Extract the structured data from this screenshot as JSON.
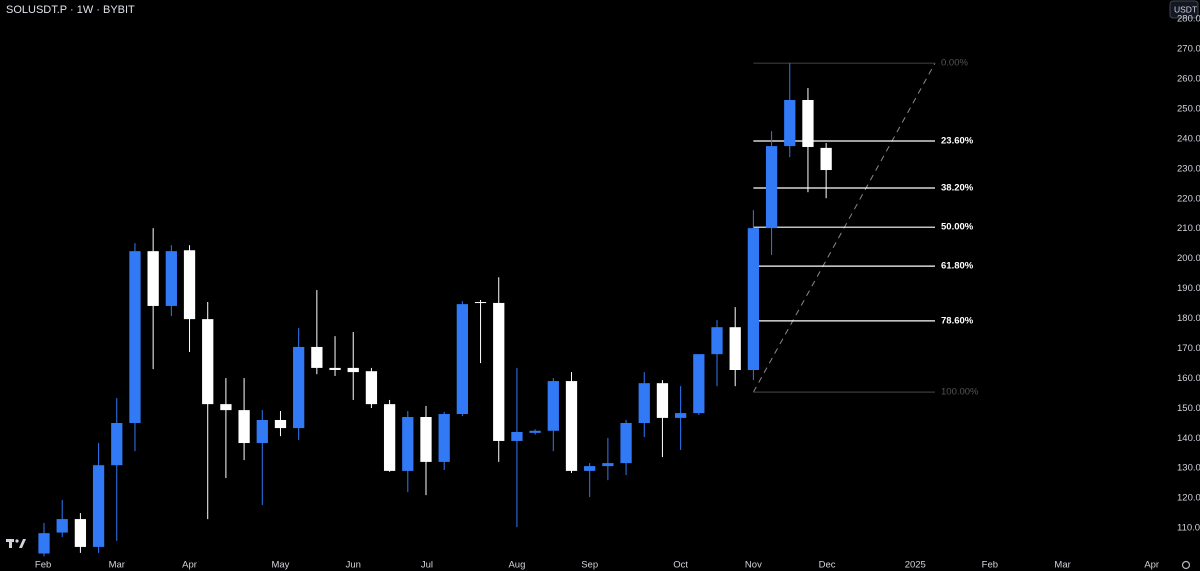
{
  "header": {
    "symbol": "SOLUSDT.P · 1W · BYBIT",
    "currency": "USDT"
  },
  "chart_data": {
    "type": "candlestick",
    "x": [
      0,
      1,
      2,
      3,
      4,
      5,
      6,
      7,
      8,
      9,
      10,
      11,
      12,
      13,
      14,
      15,
      16,
      17,
      18,
      19,
      20,
      21,
      22,
      23,
      24,
      25,
      26,
      27,
      28,
      29,
      30,
      31,
      32,
      33,
      34,
      35,
      36,
      37,
      38,
      39,
      40,
      41,
      42,
      43
    ],
    "open": [
      101.5,
      108.5,
      113,
      103.7,
      131,
      145.1,
      202.5,
      184.2,
      202.8,
      179.8,
      151.4,
      149.4,
      138.4,
      146.1,
      143.4,
      170.5,
      163.5,
      163.5,
      162.4,
      151.4,
      129.1,
      147.1,
      132.1,
      148.1,
      185.5,
      185.2,
      139.1,
      141.8,
      142.5,
      159.1,
      129.1,
      130.7,
      131.7,
      145.1,
      158.4,
      146.8,
      148.4,
      168.1,
      177.1,
      162.8,
      210.2,
      237.6,
      253,
      237
    ],
    "high": [
      111.7,
      119.4,
      115,
      138.4,
      153.4,
      205.2,
      210.2,
      204.5,
      204.5,
      185.5,
      160.1,
      160.1,
      149.4,
      149.1,
      176.8,
      189.5,
      174.1,
      175.5,
      163.5,
      152.8,
      149.1,
      150.8,
      148.8,
      185.8,
      186.2,
      193.8,
      163.5,
      143,
      160.1,
      162.1,
      131.7,
      140.1,
      146.1,
      162.1,
      159.4,
      157.4,
      168.1,
      179.5,
      183.8,
      216.2,
      242.6,
      265.3,
      257,
      238.6
    ],
    "low": [
      100.5,
      107,
      101.7,
      101.7,
      105.7,
      135.7,
      163.1,
      180.8,
      168.8,
      113,
      126.7,
      132.7,
      117.7,
      140.7,
      139.4,
      161.4,
      160.8,
      152.8,
      150.1,
      128.8,
      122,
      121,
      129.4,
      147.4,
      165.1,
      132.1,
      110.3,
      141.2,
      135.7,
      128.4,
      120.4,
      126,
      127.7,
      140.4,
      133.7,
      136.1,
      147.8,
      157.4,
      157.4,
      159.4,
      201.2,
      233.9,
      222.2,
      220.2
    ],
    "close": [
      108.3,
      113,
      103.7,
      131,
      145.1,
      202.5,
      184.2,
      202.5,
      179.8,
      151.4,
      149.4,
      138.4,
      146.1,
      143.4,
      170.5,
      163.5,
      162.8,
      162.1,
      151.4,
      129.1,
      147.1,
      132.1,
      148.1,
      184.8,
      185.2,
      139.1,
      142.1,
      142.5,
      159.1,
      129.1,
      130.7,
      131.7,
      145.1,
      158.4,
      146.8,
      148.4,
      168.1,
      177.1,
      162.8,
      210.2,
      237.6,
      253,
      237.3,
      229.6
    ],
    "up_color": "#3179f5",
    "down_color": "#ffffff",
    "xlim": [
      -2.42,
      61.63
    ],
    "xticks": [
      {
        "value": -0.05,
        "label": "Feb"
      },
      {
        "value": 4,
        "label": "Mar"
      },
      {
        "value": 8,
        "label": "Apr"
      },
      {
        "value": 13,
        "label": "May"
      },
      {
        "value": 17,
        "label": "Jun"
      },
      {
        "value": 21.05,
        "label": "Jul"
      },
      {
        "value": 26,
        "label": "Aug"
      },
      {
        "value": 30,
        "label": "Sep"
      },
      {
        "value": 35,
        "label": "Oct"
      },
      {
        "value": 39,
        "label": "Nov"
      },
      {
        "value": 43.05,
        "label": "Dec"
      },
      {
        "value": 47.9,
        "label": "2025"
      },
      {
        "value": 52,
        "label": "Feb"
      },
      {
        "value": 56,
        "label": "Mar"
      },
      {
        "value": 60.9,
        "label": "Apr"
      }
    ],
    "ylim": [
      100,
      286.4
    ],
    "yticks": [
      {
        "value": 110,
        "label": "110.00"
      },
      {
        "value": 120,
        "label": "120.00"
      },
      {
        "value": 130,
        "label": "130.00"
      },
      {
        "value": 140,
        "label": "140.00"
      },
      {
        "value": 150,
        "label": "150.00"
      },
      {
        "value": 160,
        "label": "160.00"
      },
      {
        "value": 170,
        "label": "170.00"
      },
      {
        "value": 180,
        "label": "180.00"
      },
      {
        "value": 190,
        "label": "190.00"
      },
      {
        "value": 200,
        "label": "200.00"
      },
      {
        "value": 210,
        "label": "210.00"
      },
      {
        "value": 220,
        "label": "220.00"
      },
      {
        "value": 230,
        "label": "230.00"
      },
      {
        "value": 240,
        "label": "240.00"
      },
      {
        "value": 250,
        "label": "250.00"
      },
      {
        "value": 260,
        "label": "260.00"
      },
      {
        "value": 270,
        "label": "270.00"
      },
      {
        "value": 280,
        "label": "280.00"
      }
    ],
    "fib_levels": [
      {
        "label": "0.00%",
        "price": 265.3
      },
      {
        "label": "23.60%",
        "price": 239.3
      },
      {
        "label": "38.20%",
        "price": 223.6
      },
      {
        "label": "50.00%",
        "price": 210.5
      },
      {
        "label": "61.80%",
        "price": 197.5
      },
      {
        "label": "78.60%",
        "price": 179.2
      },
      {
        "label": "100.00%",
        "price": 155.4
      }
    ]
  }
}
